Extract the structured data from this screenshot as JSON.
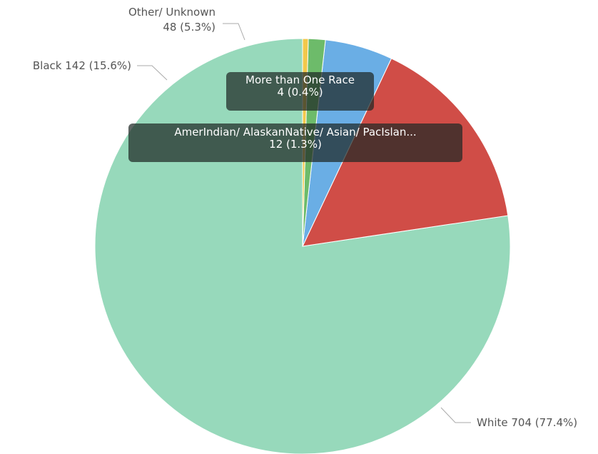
{
  "chart_data": {
    "type": "pie",
    "slices": [
      {
        "label": "White",
        "value": 704,
        "percent": "77.4%",
        "color": "#97d9bb",
        "display": "White 704 (77.4%)"
      },
      {
        "label": "Black",
        "value": 142,
        "percent": "15.6%",
        "color": "#d04d47",
        "display": "Black 142 (15.6%)"
      },
      {
        "label": "Other/ Unknown",
        "value": 48,
        "percent": "5.3%",
        "color": "#6aaee5",
        "display_line1": "Other/ Unknown",
        "display_line2": "48 (5.3%)"
      },
      {
        "label": "AmerIndian/ AlaskanNative/ Asian/ PacIslan...",
        "value": 12,
        "percent": "1.3%",
        "color": "#6dbb6a",
        "display_line1": "AmerIndian/ AlaskanNative/ Asian/ PacIslan...",
        "display_line2": "12 (1.3%)"
      },
      {
        "label": "More than One Race",
        "value": 4,
        "percent": "0.4%",
        "color": "#f2c84b",
        "display_line1": "More than One Race",
        "display_line2": "4 (0.4%)"
      }
    ],
    "start": "12 o'clock",
    "direction": "counterclockwise",
    "legend": "none"
  }
}
